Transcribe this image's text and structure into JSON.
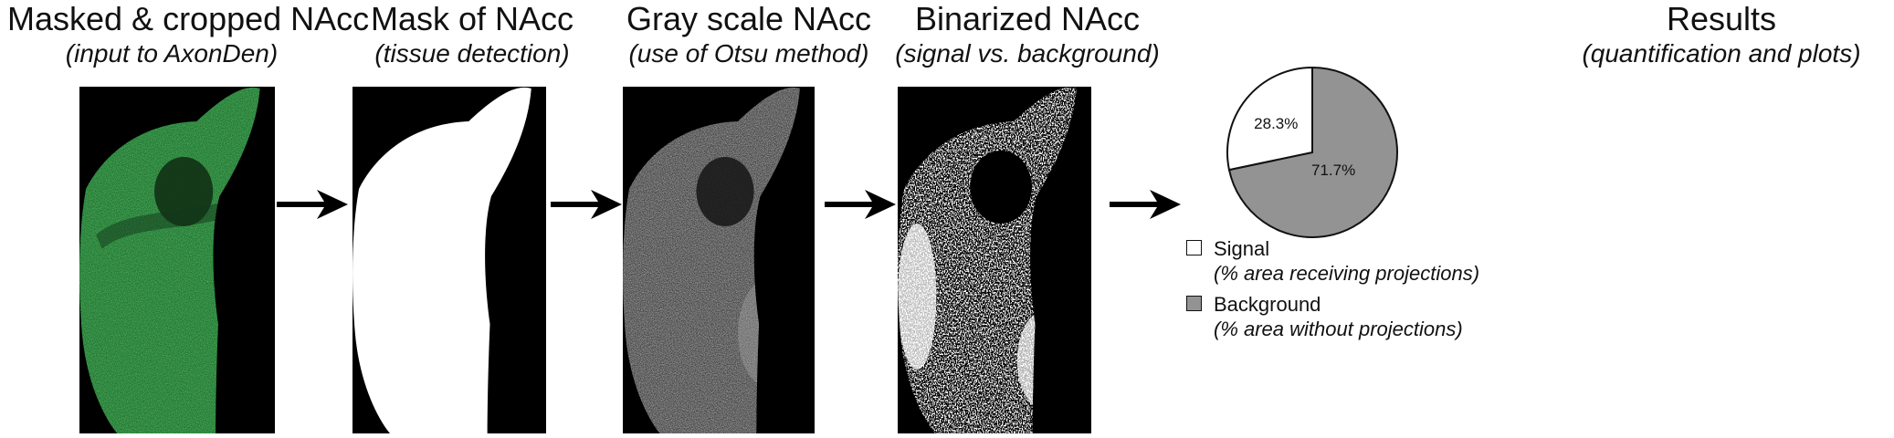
{
  "panels": [
    {
      "title": "Masked & cropped NAcc",
      "subtitle": "(input to AxonDen)"
    },
    {
      "title": "Mask of NAcc",
      "subtitle": "(tissue detection)"
    },
    {
      "title": "Gray scale NAcc",
      "subtitle": "(use of Otsu method)"
    },
    {
      "title": "Binarized NAcc",
      "subtitle": "(signal vs. background)"
    },
    {
      "title": "Results",
      "subtitle": "(quantification and plots)"
    }
  ],
  "chart_data": {
    "type": "pie",
    "slices": [
      {
        "label": "Signal",
        "value": 28.3,
        "text": "28.3%",
        "color": "#ffffff"
      },
      {
        "label": "Background",
        "value": 71.7,
        "text": "71.7%",
        "color": "#939393"
      }
    ]
  },
  "legend": [
    {
      "label": "Signal",
      "description": "(% area receiving projections)",
      "color": "#ffffff"
    },
    {
      "label": "Background",
      "description": "(% area without projections)",
      "color": "#939393"
    }
  ],
  "colors": {
    "green_signal": "#2f9a3c",
    "image_background": "#000000",
    "arrow": "#000000"
  }
}
